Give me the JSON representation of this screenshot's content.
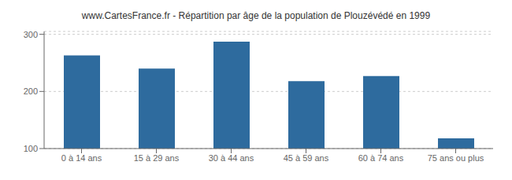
{
  "chart_data": {
    "type": "bar",
    "title": "www.CartesFrance.fr - Répartition par âge de la population de Plouzévédé en 1999",
    "categories": [
      "0 à 14 ans",
      "15 à 29 ans",
      "30 à 44 ans",
      "45 à 59 ans",
      "60 à 74 ans",
      "75 ans ou plus"
    ],
    "values": [
      263,
      240,
      287,
      218,
      227,
      118
    ],
    "color": "#2e6b9e",
    "ylim": [
      100,
      305
    ],
    "yticks": [
      100,
      200,
      300
    ],
    "grid": true
  }
}
